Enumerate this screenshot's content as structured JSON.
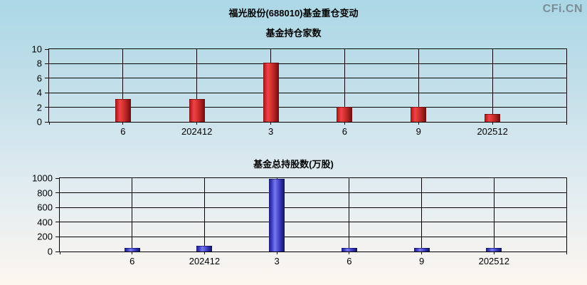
{
  "header": {
    "title": "福光股份(688010)基金重仓变动",
    "watermark": "CFi.CN"
  },
  "chart_data": [
    {
      "type": "bar",
      "title": "基金持仓家数",
      "categories": [
        "6",
        "202412",
        "3",
        "6",
        "9",
        "202512"
      ],
      "values": [
        3,
        3,
        8,
        2,
        2,
        1
      ],
      "ylim": [
        0,
        10
      ],
      "yticks": [
        0,
        2,
        4,
        6,
        8,
        10
      ],
      "bar_color": "#e03a3a",
      "bar_style": "red",
      "grid": true,
      "legend": false
    },
    {
      "type": "bar",
      "title": "基金总持股数(万股)",
      "categories": [
        "6",
        "202412",
        "3",
        "6",
        "9",
        "202512"
      ],
      "values": [
        40,
        70,
        980,
        35,
        35,
        35
      ],
      "ylim": [
        0,
        1000
      ],
      "yticks": [
        0,
        200,
        400,
        600,
        800,
        1000
      ],
      "bar_color": "#3a3ae0",
      "bar_style": "blue",
      "grid": true,
      "legend": false
    }
  ]
}
